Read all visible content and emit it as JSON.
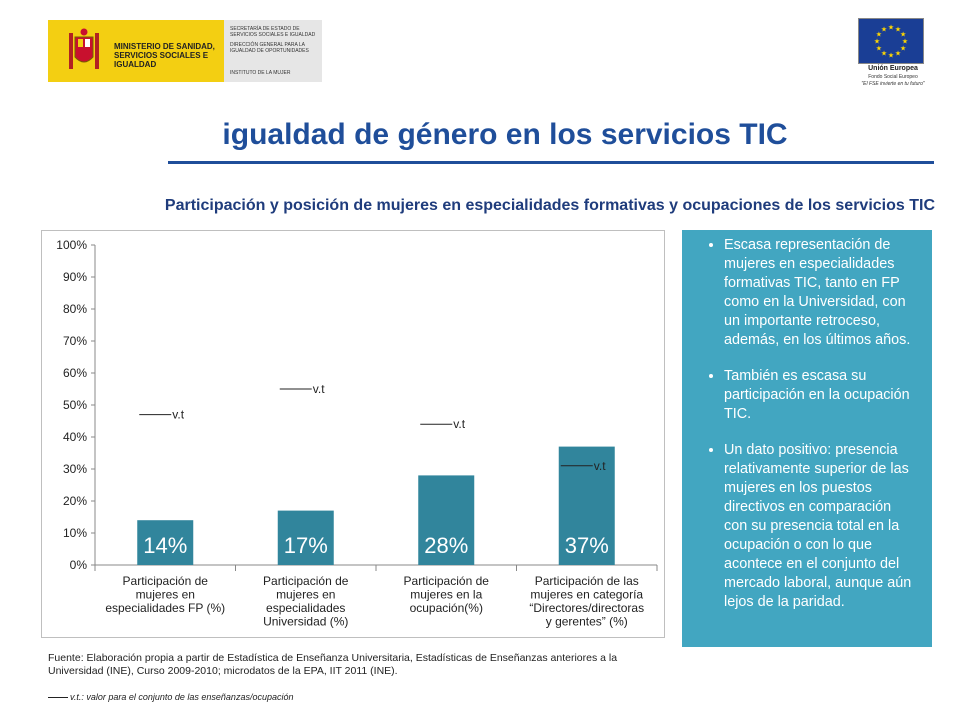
{
  "header": {
    "ministry": "MINISTERIO DE SANIDAD, SERVICIOS SOCIALES E IGUALDAD",
    "secretaria": "SECRETARÍA DE ESTADO DE SERVICIOS SOCIALES E IGUALDAD",
    "direccion": "DIRECCIÓN GENERAL PARA LA IGUALDAD DE OPORTUNIDADES",
    "instituto": "INSTITUTO DE LA MUJER",
    "eu_name": "Unión Europea",
    "eu_fund": "Fondo Social Europeo",
    "eu_motto": "\"El FSE invierte en tu futuro\""
  },
  "page": {
    "title": "igualdad de género en los servicios TIC",
    "subtitle": "Participación y posición de mujeres en especialidades formativas y ocupaciones de los servicios TIC"
  },
  "chart_data": {
    "type": "bar",
    "categories": [
      [
        "Participación de",
        "mujeres en",
        "especialidades FP (%)"
      ],
      [
        "Participación de",
        "mujeres en",
        "especialidades",
        "Universidad (%)"
      ],
      [
        "Participación de",
        "mujeres en la",
        "ocupación(%)"
      ],
      [
        "Participación de las",
        "mujeres en categoría",
        "“Directores/directoras",
        "y gerentes”  (%)"
      ]
    ],
    "values": [
      14,
      17,
      28,
      37
    ],
    "data_labels": [
      "14%",
      "17%",
      "28%",
      "37%"
    ],
    "reference": {
      "label": "v.t",
      "values": [
        47,
        55,
        44,
        31
      ]
    },
    "yticks": [
      "0%",
      "10%",
      "20%",
      "30%",
      "40%",
      "50%",
      "60%",
      "70%",
      "80%",
      "90%",
      "100%"
    ],
    "ylim": [
      0,
      100
    ],
    "grid": false,
    "bar_color": "#31859c"
  },
  "bullets": [
    "Escasa representación de mujeres en especialidades formativas TIC, tanto en FP como en la Universidad, con un importante retroceso, además, en los últimos años.",
    "También es escasa su participación en la ocupación TIC.",
    "Un dato positivo: presencia relativamente superior de las mujeres en los puestos directivos en comparación con su presencia total en la ocupación o con lo que acontece en el conjunto del mercado laboral, aunque aún lejos de la paridad."
  ],
  "footer": {
    "source": "Fuente: Elaboración propia a partir de Estadística de Enseñanza Universitaria, Estadísticas de Enseñanzas anteriores a la Universidad (INE), Curso 2009-2010; microdatos de la EPA, IIT 2011 (INE).",
    "note": "v.t.: valor para el conjunto de las enseñanzas/ocupación"
  }
}
